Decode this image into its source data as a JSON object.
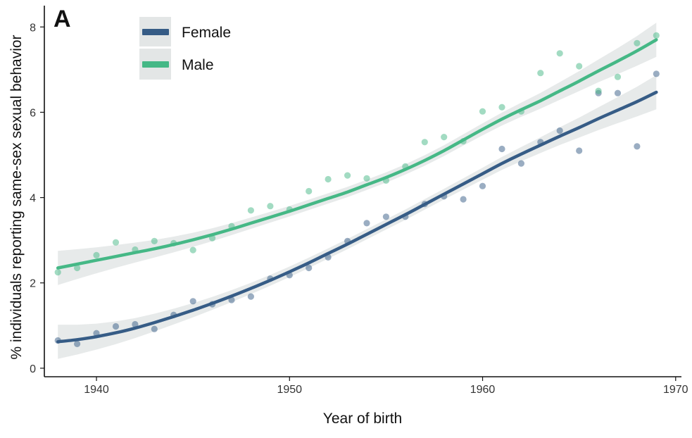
{
  "panel_label": "A",
  "colors": {
    "female": "#365c86",
    "male": "#45b886",
    "ribbon": "#d4d8d8"
  },
  "chart_data": {
    "type": "scatter",
    "title": "",
    "xlabel": "Year of birth",
    "ylabel": "% individuals reporting same-sex sexual behavior",
    "xlim": [
      1937.3,
      1970.3
    ],
    "ylim": [
      -0.2,
      8.5
    ],
    "xticks": [
      1940,
      1950,
      1960,
      1970
    ],
    "yticks": [
      0,
      2,
      4,
      6,
      8
    ],
    "legend_position": "top-left",
    "series": [
      {
        "name": "Female",
        "color": "#365c86",
        "x": [
          1938,
          1939,
          1940,
          1941,
          1942,
          1943,
          1944,
          1945,
          1946,
          1947,
          1948,
          1949,
          1950,
          1951,
          1952,
          1953,
          1954,
          1955,
          1956,
          1957,
          1958,
          1959,
          1960,
          1961,
          1962,
          1963,
          1964,
          1965,
          1966,
          1967,
          1968,
          1969
        ],
        "y": [
          0.65,
          0.57,
          0.82,
          0.98,
          1.03,
          0.92,
          1.25,
          1.57,
          1.5,
          1.6,
          1.68,
          2.1,
          2.18,
          2.35,
          2.6,
          2.98,
          3.4,
          3.55,
          3.55,
          3.85,
          4.03,
          3.96,
          4.27,
          5.14,
          4.8,
          5.3,
          5.57,
          5.1,
          6.45,
          6.45,
          5.2,
          6.9
        ],
        "fit": [
          0.62,
          0.67,
          0.74,
          0.83,
          0.94,
          1.07,
          1.21,
          1.36,
          1.52,
          1.69,
          1.87,
          2.06,
          2.26,
          2.47,
          2.69,
          2.91,
          3.14,
          3.37,
          3.6,
          3.84,
          4.08,
          4.32,
          4.56,
          4.8,
          5.02,
          5.23,
          5.44,
          5.64,
          5.85,
          6.05,
          6.25,
          6.47
        ]
      },
      {
        "name": "Male",
        "color": "#45b886",
        "x": [
          1938,
          1939,
          1940,
          1941,
          1942,
          1943,
          1944,
          1945,
          1946,
          1947,
          1948,
          1949,
          1950,
          1951,
          1952,
          1953,
          1954,
          1955,
          1956,
          1957,
          1958,
          1959,
          1960,
          1961,
          1962,
          1963,
          1964,
          1965,
          1966,
          1967,
          1968,
          1969
        ],
        "y": [
          2.25,
          2.35,
          2.65,
          2.95,
          2.78,
          2.98,
          2.93,
          2.77,
          3.05,
          3.33,
          3.7,
          3.8,
          3.72,
          4.15,
          4.43,
          4.52,
          4.45,
          4.4,
          4.73,
          5.3,
          5.42,
          5.32,
          6.02,
          6.12,
          6.02,
          6.92,
          7.38,
          7.08,
          6.5,
          6.83,
          7.62,
          7.8
        ],
        "fit": [
          2.35,
          2.44,
          2.53,
          2.62,
          2.71,
          2.8,
          2.9,
          3.01,
          3.13,
          3.26,
          3.4,
          3.54,
          3.68,
          3.83,
          3.98,
          4.13,
          4.3,
          4.47,
          4.66,
          4.87,
          5.1,
          5.35,
          5.6,
          5.84,
          6.06,
          6.27,
          6.5,
          6.73,
          6.97,
          7.2,
          7.44,
          7.7
        ]
      }
    ]
  }
}
